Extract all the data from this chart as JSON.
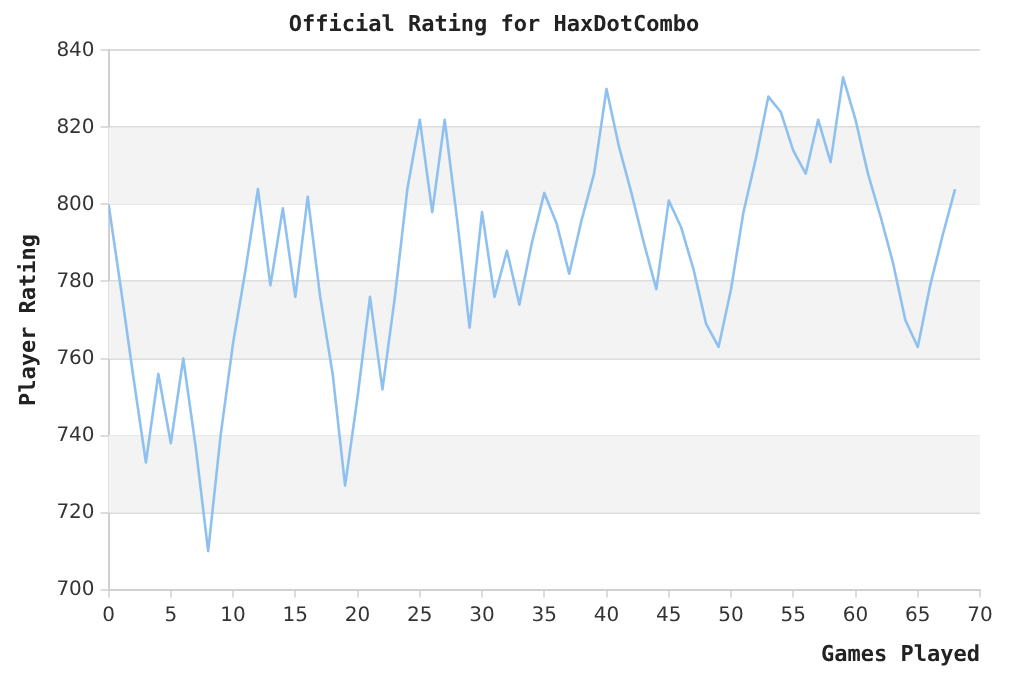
{
  "chart_data": {
    "type": "line",
    "title": "Official Rating for HaxDotCombo",
    "xlabel": "Games Played",
    "ylabel": "Player Rating",
    "x": [
      0,
      1,
      2,
      3,
      4,
      5,
      6,
      7,
      8,
      9,
      10,
      11,
      12,
      13,
      14,
      15,
      16,
      17,
      18,
      19,
      20,
      21,
      22,
      23,
      24,
      25,
      26,
      27,
      28,
      29,
      30,
      31,
      32,
      33,
      34,
      35,
      36,
      37,
      38,
      39,
      40,
      41,
      42,
      43,
      44,
      45,
      46,
      47,
      48,
      49,
      50,
      51,
      52,
      53,
      54,
      55,
      56,
      57,
      58,
      59,
      60,
      61,
      62,
      63,
      64,
      65,
      66,
      67,
      68
    ],
    "series": [
      {
        "color": "#8fc1f0",
        "values": [
          800,
          778,
          755,
          733,
          756,
          738,
          760,
          737,
          710,
          740,
          764,
          783,
          804,
          779,
          799,
          776,
          802,
          776,
          756,
          727,
          750,
          776,
          752,
          776,
          804,
          822,
          798,
          822,
          796,
          768,
          798,
          776,
          788,
          774,
          790,
          803,
          795,
          782,
          796,
          808,
          830,
          815,
          803,
          790,
          778,
          801,
          794,
          783,
          769,
          763,
          778,
          798,
          812,
          828,
          824,
          814,
          808,
          822,
          811,
          833,
          822,
          808,
          797,
          785,
          770,
          763,
          779,
          792,
          804
        ]
      }
    ],
    "xlim": [
      0,
      70
    ],
    "xticks": [
      0,
      5,
      10,
      15,
      20,
      25,
      30,
      35,
      40,
      45,
      50,
      55,
      60,
      65,
      70
    ],
    "ylim": [
      700,
      840
    ],
    "yticks": [
      700,
      720,
      740,
      760,
      780,
      800,
      820,
      840
    ],
    "grid": "y",
    "legend": false,
    "marker": "none",
    "line_style": "solid"
  }
}
